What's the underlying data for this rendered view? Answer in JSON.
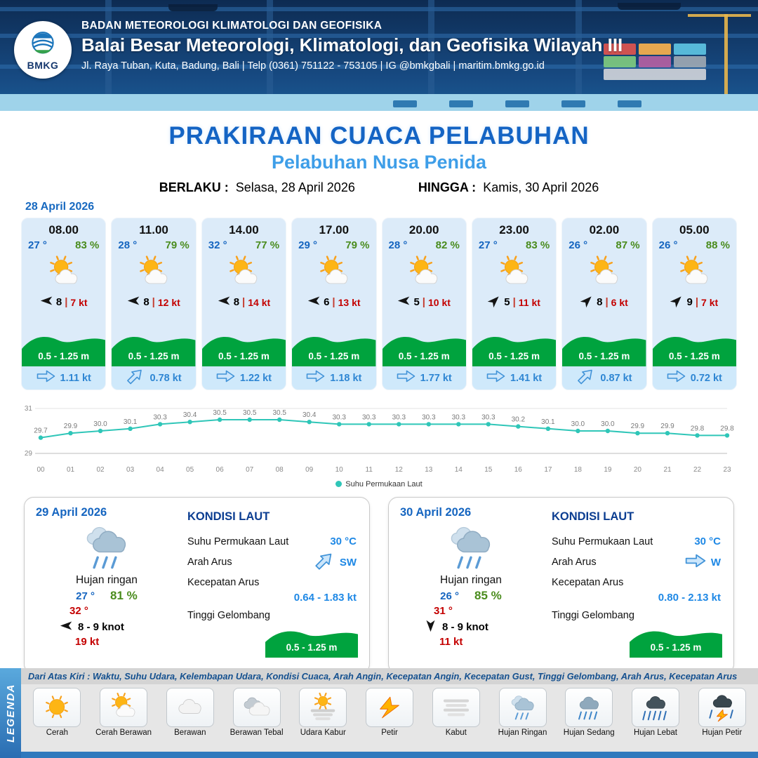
{
  "header": {
    "logo": "BMKG",
    "org": "BADAN METEOROLOGI KLIMATOLOGI DAN GEOFISIKA",
    "office": "Balai Besar Meteorologi, Klimatologi, dan Geofisika Wilayah III",
    "address": "Jl. Raya Tuban, Kuta, Badung, Bali | Telp (0361) 751122 - 753105 | IG @bmkgbali | maritim.bmkg.go.id"
  },
  "title": {
    "main": "PRAKIRAAN CUACA PELABUHAN",
    "sub": "Pelabuhan Nusa Penida",
    "valid_label": "BERLAKU :",
    "valid_value": "Selasa, 28 April 2026",
    "until_label": "HINGGA :",
    "until_value": "Kamis, 30 April 2026"
  },
  "forecast_date": "28 April 2026",
  "hourly": [
    {
      "time": "08.00",
      "temp": "27 °",
      "rh": "83 %",
      "condition": "Cerah Berawan",
      "wind_speed": "8",
      "gust": "7 kt",
      "wind_deg": 180,
      "wave": "0.5 - 1.25 m",
      "current": "1.11 kt",
      "current_deg": 180
    },
    {
      "time": "11.00",
      "temp": "28 °",
      "rh": "79 %",
      "condition": "Cerah Berawan",
      "wind_speed": "8",
      "gust": "12 kt",
      "wind_deg": 180,
      "wave": "0.5 - 1.25 m",
      "current": "0.78 kt",
      "current_deg": 135
    },
    {
      "time": "14.00",
      "temp": "32 °",
      "rh": "77 %",
      "condition": "Cerah Berawan",
      "wind_speed": "8",
      "gust": "14 kt",
      "wind_deg": 180,
      "wave": "0.5 - 1.25 m",
      "current": "1.22 kt",
      "current_deg": 180
    },
    {
      "time": "17.00",
      "temp": "29 °",
      "rh": "79 %",
      "condition": "Cerah Berawan",
      "wind_speed": "6",
      "gust": "13 kt",
      "wind_deg": 180,
      "wave": "0.5 - 1.25 m",
      "current": "1.18 kt",
      "current_deg": 180
    },
    {
      "time": "20.00",
      "temp": "28 °",
      "rh": "82 %",
      "condition": "Cerah Berawan",
      "wind_speed": "5",
      "gust": "10 kt",
      "wind_deg": 180,
      "wave": "0.5 - 1.25 m",
      "current": "1.77 kt",
      "current_deg": 180
    },
    {
      "time": "23.00",
      "temp": "27 °",
      "rh": "83 %",
      "condition": "Cerah Berawan",
      "wind_speed": "5",
      "gust": "11 kt",
      "wind_deg": 315,
      "wave": "0.5 - 1.25 m",
      "current": "1.41 kt",
      "current_deg": 180
    },
    {
      "time": "02.00",
      "temp": "26 °",
      "rh": "87 %",
      "condition": "Cerah Berawan",
      "wind_speed": "8",
      "gust": "6 kt",
      "wind_deg": 315,
      "wave": "0.5 - 1.25 m",
      "current": "0.87 kt",
      "current_deg": 135
    },
    {
      "time": "05.00",
      "temp": "26 °",
      "rh": "88 %",
      "condition": "Cerah Berawan",
      "wind_speed": "9",
      "gust": "7 kt",
      "wind_deg": 315,
      "wave": "0.5 - 1.25 m",
      "current": "0.72 kt",
      "current_deg": 180
    }
  ],
  "chart_data": {
    "type": "line",
    "title": "",
    "xlabel": "",
    "ylabel": "",
    "x": [
      "00",
      "01",
      "02",
      "03",
      "04",
      "05",
      "06",
      "07",
      "08",
      "09",
      "10",
      "11",
      "12",
      "13",
      "14",
      "15",
      "16",
      "17",
      "18",
      "19",
      "20",
      "21",
      "22",
      "23"
    ],
    "series": [
      {
        "name": "Suhu Permukaan Laut",
        "values": [
          29.7,
          29.9,
          30.0,
          30.1,
          30.3,
          30.4,
          30.5,
          30.5,
          30.5,
          30.4,
          30.3,
          30.3,
          30.3,
          30.3,
          30.3,
          30.3,
          30.2,
          30.1,
          30.0,
          30.0,
          29.9,
          29.9,
          29.8,
          29.8
        ]
      }
    ],
    "ylim": [
      29,
      31
    ],
    "yticks": [
      29,
      31
    ],
    "grid": false,
    "legend": "Suhu Permukaan Laut",
    "legend_position": "bottom",
    "line_color": "#2fc6b8"
  },
  "daily": [
    {
      "date": "29 April 2026",
      "condition": "Hujan ringan",
      "tmin": "27 °",
      "rh": "81 %",
      "tmax": "32 °",
      "wind": "8  - 9 knot",
      "wind_deg": 180,
      "gust": "19 kt",
      "sea": {
        "title": "KONDISI LAUT",
        "sst_label": "Suhu Permukaan Laut",
        "sst": "30 °C",
        "dir_label": "Arah Arus",
        "dir": "SW",
        "dir_deg": 135,
        "spd_label": "Kecepatan Arus",
        "spd": "0.64 - 1.83 kt",
        "wave_label": "Tinggi Gelombang",
        "wave": "0.5 - 1.25 m"
      }
    },
    {
      "date": "30 April 2026",
      "condition": "Hujan ringan",
      "tmin": "26 °",
      "rh": "85 %",
      "tmax": "31 °",
      "wind": "8  - 9 knot",
      "wind_deg": 90,
      "gust": "11 kt",
      "sea": {
        "title": "KONDISI LAUT",
        "sst_label": "Suhu Permukaan Laut",
        "sst": "30 °C",
        "dir_label": "Arah Arus",
        "dir": "W",
        "dir_deg": 180,
        "spd_label": "Kecepatan Arus",
        "spd": "0.80 - 2.13 kt",
        "wave_label": "Tinggi Gelombang",
        "wave": "0.5 - 1.25 m"
      }
    }
  ],
  "legend": {
    "title": "LEGENDA",
    "note": "Dari Atas Kiri : Waktu, Suhu Udara, Kelembapan Udara, Kondisi Cuaca, Arah Angin, Kecepatan Angin, Kecepatan Gust, Tinggi Gelombang, Arah Arus, Kecepatan Arus",
    "items": [
      {
        "label": "Cerah",
        "icon": "cerah"
      },
      {
        "label": "Cerah Berawan",
        "icon": "cerah-berawan"
      },
      {
        "label": "Berawan",
        "icon": "berawan"
      },
      {
        "label": "Berawan Tebal",
        "icon": "berawan-tebal"
      },
      {
        "label": "Udara Kabur",
        "icon": "udara-kabur"
      },
      {
        "label": "Petir",
        "icon": "petir"
      },
      {
        "label": "Kabut",
        "icon": "kabut"
      },
      {
        "label": "Hujan Ringan",
        "icon": "hujan-ringan"
      },
      {
        "label": "Hujan Sedang",
        "icon": "hujan-sedang"
      },
      {
        "label": "Hujan Lebat",
        "icon": "hujan-lebat"
      },
      {
        "label": "Hujan Petir",
        "icon": "hujan-petir"
      }
    ]
  },
  "colors": {
    "header_blue": "#15457e",
    "title_blue": "#1464c4",
    "subtitle_blue": "#3e9ee8",
    "temp_blue": "#1565c0",
    "humidity_green": "#4a8c1e",
    "gust_red": "#c40000",
    "wave_green": "#00a33e",
    "current_blue": "#2e86d3",
    "chart_teal": "#2fc6b8"
  }
}
